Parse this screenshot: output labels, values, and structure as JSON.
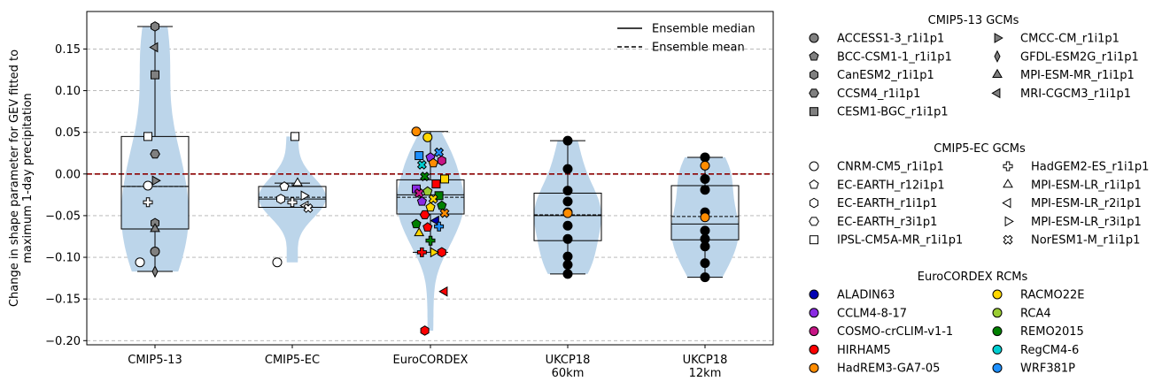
{
  "chart_data": {
    "type": "violin",
    "ylabel": "Change in shape parameter for GEV fitted to\nmaximum 1-day precipitation",
    "categories": [
      "CMIP5-13",
      "CMIP5-EC",
      "EuroCORDEX",
      "UKCP18\n60km",
      "UKCP18\n12km"
    ],
    "ylim": [
      -0.205,
      0.195
    ],
    "yticks": [
      -0.2,
      -0.15,
      -0.1,
      -0.05,
      0.0,
      0.05,
      0.1,
      0.15
    ],
    "ytick_labels": [
      "−0.20",
      "−0.15",
      "−0.10",
      "−0.05",
      "0.00",
      "0.05",
      "0.10",
      "0.15"
    ],
    "grid": "y-dashed",
    "zero_line_color": "#8b0000",
    "violin_color": "#bcd5ea",
    "line_legend": {
      "position": "top-right",
      "items": [
        {
          "label": "Ensemble median",
          "style": "solid"
        },
        {
          "label": "Ensemble mean",
          "style": "dashed"
        }
      ]
    },
    "groups": [
      {
        "category": "CMIP5-13",
        "box": {
          "q1": -0.066,
          "median": -0.015,
          "q3": 0.045,
          "whisker_low": -0.117,
          "whisker_high": 0.177
        },
        "mean": -0.015,
        "points": [
          {
            "model": "CanESM2_r1i1p1",
            "y": 0.177
          },
          {
            "model": "MRI-CGCM3_r1i1p1",
            "y": 0.152
          },
          {
            "model": "CESM1-BGC_r1i1p1",
            "y": 0.119
          },
          {
            "model": "IPSL-CM5A-MR_r1i1p1",
            "y": 0.045
          },
          {
            "model": "CCSM4_r1i1p1",
            "y": 0.024
          },
          {
            "model": "CMCC-CM_r1i1p1",
            "y": -0.008
          },
          {
            "model": "CNRM-CM5_r1i1p1",
            "y": -0.014
          },
          {
            "model": "HadGEM2-ES_r1i1p1",
            "y": -0.034
          },
          {
            "model": "CanESM2_r1i1p1",
            "y": -0.059
          },
          {
            "model": "MPI-ESM-MR_r1i1p1",
            "y": -0.066
          },
          {
            "model": "ACCESS1-3_r1i1p1",
            "y": -0.093
          },
          {
            "model": "CNRM-CM5_r1i1p1",
            "y": -0.106
          },
          {
            "model": "GFDL-ESM2G_r1i1p1",
            "y": -0.117
          }
        ]
      },
      {
        "category": "CMIP5-EC",
        "box": {
          "q1": -0.04,
          "median": -0.03,
          "q3": -0.015,
          "whisker_low": -0.04,
          "whisker_high": -0.011
        },
        "mean": -0.028,
        "points": [
          {
            "model": "IPSL-CM5A-MR_r1i1p1",
            "y": 0.045
          },
          {
            "model": "EC-EARTH_r12i1p1",
            "y": -0.015
          },
          {
            "model": "MPI-ESM-LR_r1i1p1",
            "y": -0.011
          },
          {
            "model": "MPI-ESM-LR_r3i1p1",
            "y": -0.026
          },
          {
            "model": "EC-EARTH_r1i1p1",
            "y": -0.03
          },
          {
            "model": "HadGEM2-ES_r1i1p1",
            "y": -0.034
          },
          {
            "model": "MPI-ESM-LR_r2i1p1",
            "y": -0.038
          },
          {
            "model": "NorESM1-M_r1i1p1",
            "y": -0.041
          },
          {
            "model": "CNRM-CM5_r1i1p1",
            "y": -0.106
          }
        ]
      },
      {
        "category": "EuroCORDEX",
        "box": {
          "q1": -0.048,
          "median": -0.025,
          "q3": -0.007,
          "whisker_low": -0.094,
          "whisker_high": 0.051
        },
        "mean": -0.028,
        "points": [
          {
            "rcm": "HadREM3-GA7-05",
            "gcm": "CNRM-CM5_r1i1p1",
            "y": 0.051
          },
          {
            "rcm": "RACMO22E",
            "gcm": "CNRM-CM5_r1i1p1",
            "y": 0.044
          },
          {
            "rcm": "WRF381P",
            "gcm": "NorESM1-M_r1i1p1",
            "y": 0.026
          },
          {
            "rcm": "WRF381P",
            "gcm": "IPSL-CM5A-MR_r1i1p1",
            "y": 0.022
          },
          {
            "rcm": "CCLM4-8-17",
            "gcm": "EC-EARTH_r12i1p1",
            "y": 0.02
          },
          {
            "rcm": "COSMO-crCLIM-v1-1",
            "gcm": "EC-EARTH_r1i1p1",
            "y": 0.016
          },
          {
            "rcm": "RegCM4-6",
            "gcm": "NorESM1-M_r1i1p1",
            "y": 0.011
          },
          {
            "rcm": "HadREM3-GA7-05",
            "gcm": "EC-EARTH_r12i1p1",
            "y": 0.013
          },
          {
            "rcm": "RACMO22E",
            "gcm": "IPSL-CM5A-MR_r1i1p1",
            "y": -0.006
          },
          {
            "rcm": "REMO2015",
            "gcm": "NorESM1-M_r1i1p1",
            "y": -0.003
          },
          {
            "rcm": "HIRHAM5",
            "gcm": "IPSL-CM5A-MR_r1i1p1",
            "y": -0.012
          },
          {
            "rcm": "CCLM4-8-17",
            "gcm": "IPSL-CM5A-MR_r1i1p1",
            "y": -0.018
          },
          {
            "rcm": "RCA4",
            "gcm": "EC-EARTH_r12i1p1",
            "y": -0.021
          },
          {
            "rcm": "REMO2015",
            "gcm": "IPSL-CM5A-MR_r1i1p1",
            "y": -0.026
          },
          {
            "rcm": "COSMO-crCLIM-v1-1",
            "gcm": "NorESM1-M_r1i1p1",
            "y": -0.023
          },
          {
            "rcm": "RACMO22E",
            "gcm": "EC-EARTH_r12i1p1",
            "y": -0.04
          },
          {
            "rcm": "REMO2015",
            "gcm": "EC-EARTH_r12i1p1",
            "y": -0.038
          },
          {
            "rcm": "CCLM4-8-17",
            "gcm": "EC-EARTH_r12i1p1",
            "y": -0.033
          },
          {
            "rcm": "RACMO22E",
            "gcm": "NorESM1-M_r1i1p1",
            "y": -0.03
          },
          {
            "rcm": "HadREM3-GA7-05",
            "gcm": "NorESM1-M_r1i1p1",
            "y": -0.047
          },
          {
            "rcm": "HIRHAM5",
            "gcm": "EC-EARTH_r3i1p1",
            "y": -0.049
          },
          {
            "rcm": "ALADIN63",
            "gcm": "MPI-ESM-LR_r2i1p1",
            "y": -0.056
          },
          {
            "rcm": "REMO2015",
            "gcm": "EC-EARTH_r12i1p1",
            "y": -0.06
          },
          {
            "rcm": "HIRHAM5",
            "gcm": "EC-EARTH_r12i1p1",
            "y": -0.064
          },
          {
            "rcm": "WRF381P",
            "gcm": "HadGEM2-ES_r1i1p1",
            "y": -0.063
          },
          {
            "rcm": "RACMO22E",
            "gcm": "MPI-ESM-LR_r1i1p1",
            "y": -0.071
          },
          {
            "rcm": "REMO2015",
            "gcm": "HadGEM2-ES_r1i1p1",
            "y": -0.08
          },
          {
            "rcm": "HIRHAM5",
            "gcm": "EC-EARTH_r1i1p1",
            "y": -0.094
          },
          {
            "rcm": "HIRHAM5",
            "gcm": "HadGEM2-ES_r1i1p1",
            "y": -0.094
          },
          {
            "rcm": "RACMO22E",
            "gcm": "MPI-ESM-LR_r3i1p1",
            "y": -0.094
          },
          {
            "rcm": "HIRHAM5",
            "gcm": "MPI-ESM-LR_r2i1p1",
            "y": -0.141
          },
          {
            "rcm": "HIRHAM5",
            "gcm": "EC-EARTH_r1i1p1",
            "y": -0.188
          }
        ]
      },
      {
        "category": "UKCP18\n60km",
        "box": {
          "q1": -0.08,
          "median": -0.05,
          "q3": -0.023,
          "whisker_low": -0.12,
          "whisker_high": 0.04
        },
        "mean": -0.049,
        "points": [
          {
            "y": 0.04
          },
          {
            "y": 0.006
          },
          {
            "y": -0.02
          },
          {
            "y": -0.033
          },
          {
            "y": -0.046
          },
          {
            "y": -0.047
          },
          {
            "y": -0.062
          },
          {
            "y": -0.078
          },
          {
            "y": -0.099
          },
          {
            "y": -0.109
          },
          {
            "y": -0.12
          }
        ]
      },
      {
        "category": "UKCP18\n12km",
        "box": {
          "q1": -0.079,
          "median": -0.06,
          "q3": -0.014,
          "whisker_low": -0.124,
          "whisker_high": 0.02
        },
        "mean": -0.051,
        "points": [
          {
            "y": 0.02
          },
          {
            "y": 0.01
          },
          {
            "y": -0.006
          },
          {
            "y": -0.019
          },
          {
            "y": -0.046
          },
          {
            "y": -0.052
          },
          {
            "y": -0.068
          },
          {
            "y": -0.078
          },
          {
            "y": -0.087
          },
          {
            "y": -0.107
          },
          {
            "y": -0.124
          }
        ]
      }
    ]
  },
  "legends": {
    "cmip5_13": {
      "title": "CMIP5-13 GCMs",
      "color": "#808080",
      "items": [
        {
          "label": "ACCESS1-3_r1i1p1",
          "marker": "circle"
        },
        {
          "label": "BCC-CSM1-1_r1i1p1",
          "marker": "pentagon"
        },
        {
          "label": "CanESM2_r1i1p1",
          "marker": "hexagon"
        },
        {
          "label": "CCSM4_r1i1p1",
          "marker": "hexagon2"
        },
        {
          "label": "CESM1-BGC_r1i1p1",
          "marker": "square"
        },
        {
          "label": "CMCC-CM_r1i1p1",
          "marker": "triangle-right"
        },
        {
          "label": "GFDL-ESM2G_r1i1p1",
          "marker": "diamond-thin"
        },
        {
          "label": "MPI-ESM-MR_r1i1p1",
          "marker": "triangle-up"
        },
        {
          "label": "MRI-CGCM3_r1i1p1",
          "marker": "triangle-left"
        }
      ]
    },
    "cmip5_ec": {
      "title": "CMIP5-EC GCMs",
      "color": "#ffffff",
      "items": [
        {
          "label": "CNRM-CM5_r1i1p1",
          "marker": "circle"
        },
        {
          "label": "EC-EARTH_r12i1p1",
          "marker": "pentagon"
        },
        {
          "label": "EC-EARTH_r1i1p1",
          "marker": "hexagon"
        },
        {
          "label": "EC-EARTH_r3i1p1",
          "marker": "hexagon2"
        },
        {
          "label": "IPSL-CM5A-MR_r1i1p1",
          "marker": "square"
        },
        {
          "label": "HadGEM2-ES_r1i1p1",
          "marker": "plus"
        },
        {
          "label": "MPI-ESM-LR_r1i1p1",
          "marker": "triangle-up"
        },
        {
          "label": "MPI-ESM-LR_r2i1p1",
          "marker": "triangle-left"
        },
        {
          "label": "MPI-ESM-LR_r3i1p1",
          "marker": "triangle-right"
        },
        {
          "label": "NorESM1-M_r1i1p1",
          "marker": "x"
        }
      ]
    },
    "eurocordex": {
      "title": "EuroCORDEX RCMs",
      "items": [
        {
          "label": "ALADIN63",
          "color": "#0000b3"
        },
        {
          "label": "CCLM4-8-17",
          "color": "#8a2be2"
        },
        {
          "label": "COSMO-crCLIM-v1-1",
          "color": "#c71585"
        },
        {
          "label": "HIRHAM5",
          "color": "#ff0000"
        },
        {
          "label": "HadREM3-GA7-05",
          "color": "#ff8c00"
        },
        {
          "label": "RACMO22E",
          "color": "#ffd700"
        },
        {
          "label": "RCA4",
          "color": "#9acd32"
        },
        {
          "label": "REMO2015",
          "color": "#008000"
        },
        {
          "label": "RegCM4-6",
          "color": "#00ced1"
        },
        {
          "label": "WRF381P",
          "color": "#1e90ff"
        }
      ]
    }
  },
  "ukcp_color": "#000000",
  "ukcp_mean_point_color": "#ff8c00"
}
